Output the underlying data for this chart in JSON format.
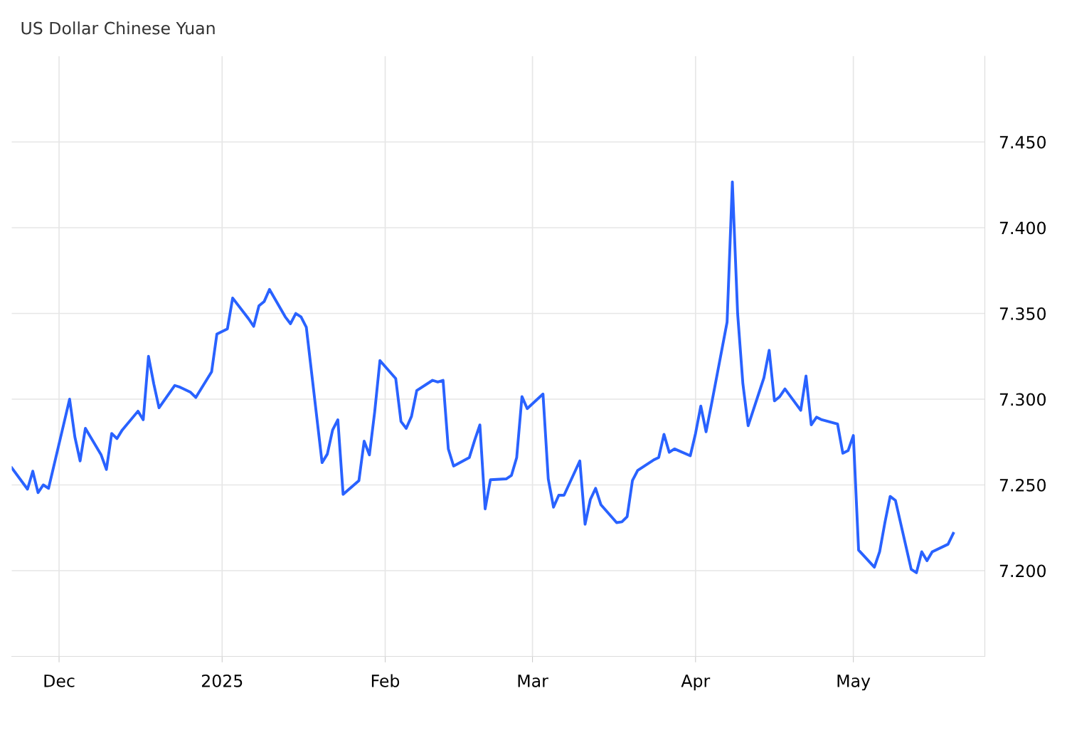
{
  "chart_data": {
    "type": "line",
    "title": "US Dollar Chinese Yuan",
    "x": [
      "2024-11-22",
      "2024-11-25",
      "2024-11-26",
      "2024-11-27",
      "2024-11-28",
      "2024-11-29",
      "2024-12-02",
      "2024-12-03",
      "2024-12-04",
      "2024-12-05",
      "2024-12-06",
      "2024-12-09",
      "2024-12-10",
      "2024-12-11",
      "2024-12-12",
      "2024-12-13",
      "2024-12-16",
      "2024-12-17",
      "2024-12-18",
      "2024-12-19",
      "2024-12-20",
      "2024-12-23",
      "2024-12-24",
      "2024-12-26",
      "2024-12-27",
      "2024-12-30",
      "2024-12-31",
      "2025-01-02",
      "2025-01-03",
      "2025-01-06",
      "2025-01-07",
      "2025-01-08",
      "2025-01-09",
      "2025-01-10",
      "2025-01-13",
      "2025-01-14",
      "2025-01-15",
      "2025-01-16",
      "2025-01-17",
      "2025-01-20",
      "2025-01-21",
      "2025-01-22",
      "2025-01-23",
      "2025-01-24",
      "2025-01-27",
      "2025-01-28",
      "2025-01-29",
      "2025-01-30",
      "2025-01-31",
      "2025-02-03",
      "2025-02-04",
      "2025-02-05",
      "2025-02-06",
      "2025-02-07",
      "2025-02-10",
      "2025-02-11",
      "2025-02-12",
      "2025-02-13",
      "2025-02-14",
      "2025-02-17",
      "2025-02-18",
      "2025-02-19",
      "2025-02-20",
      "2025-02-21",
      "2025-02-24",
      "2025-02-25",
      "2025-02-26",
      "2025-02-27",
      "2025-02-28",
      "2025-03-03",
      "2025-03-04",
      "2025-03-05",
      "2025-03-06",
      "2025-03-07",
      "2025-03-10",
      "2025-03-11",
      "2025-03-12",
      "2025-03-13",
      "2025-03-14",
      "2025-03-17",
      "2025-03-18",
      "2025-03-19",
      "2025-03-20",
      "2025-03-21",
      "2025-03-24",
      "2025-03-25",
      "2025-03-26",
      "2025-03-27",
      "2025-03-28",
      "2025-03-31",
      "2025-04-01",
      "2025-04-02",
      "2025-04-03",
      "2025-04-04",
      "2025-04-07",
      "2025-04-08",
      "2025-04-09",
      "2025-04-10",
      "2025-04-11",
      "2025-04-14",
      "2025-04-15",
      "2025-04-16",
      "2025-04-17",
      "2025-04-18",
      "2025-04-21",
      "2025-04-22",
      "2025-04-23",
      "2025-04-24",
      "2025-04-25",
      "2025-04-28",
      "2025-04-29",
      "2025-04-30",
      "2025-05-01",
      "2025-05-02",
      "2025-05-05",
      "2025-05-06",
      "2025-05-07",
      "2025-05-08",
      "2025-05-09",
      "2025-05-12",
      "2025-05-13",
      "2025-05-14",
      "2025-05-15",
      "2025-05-16",
      "2025-05-19",
      "2025-05-20"
    ],
    "series": [
      {
        "color": "#2962ff",
        "values": [
          7.26,
          7.2475,
          7.258,
          7.2455,
          7.25,
          7.248,
          7.287,
          7.3,
          7.278,
          7.264,
          7.283,
          7.2675,
          7.259,
          7.28,
          7.277,
          7.282,
          7.293,
          7.288,
          7.325,
          7.309,
          7.295,
          7.308,
          7.307,
          7.304,
          7.301,
          7.316,
          7.338,
          7.341,
          7.359,
          7.347,
          7.3425,
          7.3545,
          7.357,
          7.364,
          7.348,
          7.344,
          7.35,
          7.348,
          7.342,
          7.263,
          7.268,
          7.282,
          7.288,
          7.2445,
          7.2525,
          7.2755,
          7.2675,
          7.2925,
          7.3225,
          7.312,
          7.287,
          7.283,
          7.29,
          7.305,
          7.311,
          7.31,
          7.311,
          7.271,
          7.261,
          7.266,
          7.276,
          7.285,
          7.236,
          7.253,
          7.2535,
          7.2555,
          7.266,
          7.3015,
          7.2945,
          7.303,
          7.2535,
          7.237,
          7.244,
          7.244,
          7.264,
          7.227,
          7.2415,
          7.248,
          7.2385,
          7.228,
          7.2285,
          7.2315,
          7.2525,
          7.2585,
          7.2645,
          7.266,
          7.2795,
          7.269,
          7.271,
          7.267,
          7.28,
          7.296,
          7.281,
          7.2965,
          7.345,
          7.4267,
          7.35,
          7.309,
          7.2845,
          7.3125,
          7.3285,
          7.299,
          7.3015,
          7.306,
          7.2935,
          7.3135,
          7.285,
          7.2895,
          7.288,
          7.2855,
          7.2685,
          7.27,
          7.2788,
          7.212,
          7.202,
          7.211,
          7.228,
          7.2433,
          7.241,
          7.2008,
          7.1988,
          7.211,
          7.2058,
          7.211,
          7.2154,
          7.2217
        ]
      }
    ],
    "xlim": [
      "2024-11-22",
      "2025-05-26"
    ],
    "xticks": [
      {
        "value": "2024-12-01",
        "label": "Dec"
      },
      {
        "value": "2025-01-01",
        "label": "2025"
      },
      {
        "value": "2025-02-01",
        "label": "Feb"
      },
      {
        "value": "2025-03-01",
        "label": "Mar"
      },
      {
        "value": "2025-04-01",
        "label": "Apr"
      },
      {
        "value": "2025-05-01",
        "label": "May"
      }
    ],
    "ylim": [
      7.15,
      7.5
    ],
    "yticks": [
      {
        "value": 7.2,
        "label": "7.200"
      },
      {
        "value": 7.25,
        "label": "7.250"
      },
      {
        "value": 7.3,
        "label": "7.300"
      },
      {
        "value": 7.35,
        "label": "7.350"
      },
      {
        "value": 7.4,
        "label": "7.400"
      },
      {
        "value": 7.45,
        "label": "7.450"
      }
    ],
    "grid": true,
    "marker": "none",
    "line_style": "solid",
    "legend": false
  }
}
